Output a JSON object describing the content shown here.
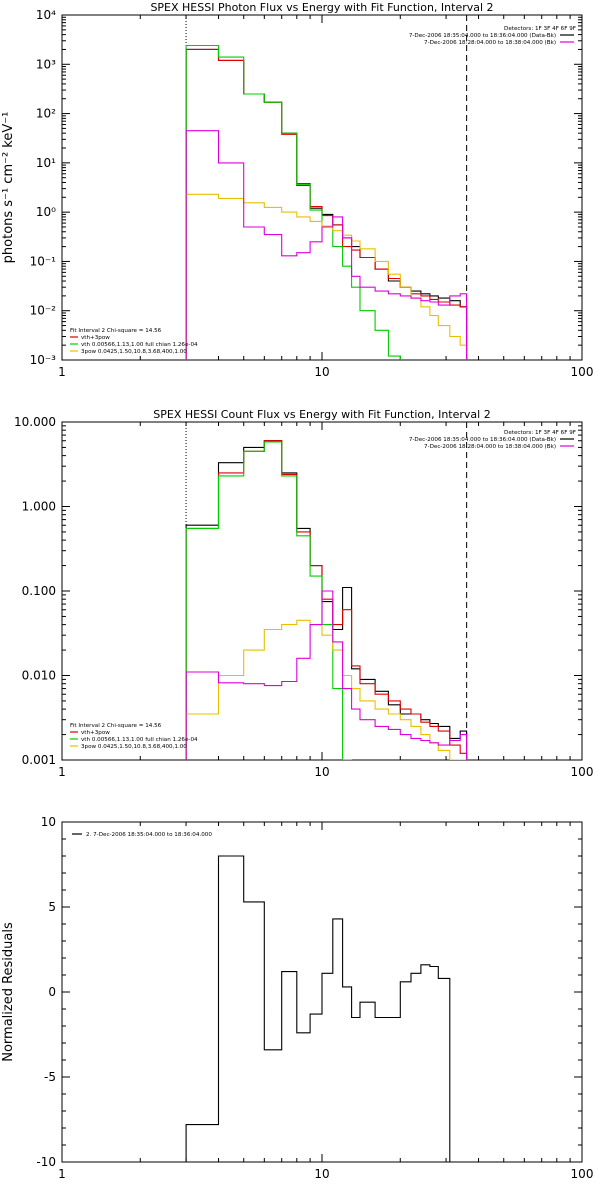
{
  "chart_data": [
    {
      "type": "line",
      "title": "SPEX HESSI Photon Flux vs Energy with Fit Function, Interval 2",
      "ylabel": "photons s⁻¹ cm⁻² keV⁻¹",
      "x_scale": "log",
      "y_scale": "log",
      "xlim": [
        1,
        100
      ],
      "ylim": [
        0.001,
        10000
      ],
      "x_ticks": [
        "1",
        "10",
        "100"
      ],
      "y_ticks": [
        "10⁻³",
        "10⁻²",
        "10⁻¹",
        "10⁰",
        "10¹",
        "10²",
        "10³",
        "10⁴"
      ],
      "legend_top": [
        "Detectors: 1F 3F 4F 6F 9F",
        "7-Dec-2006 18:35:04.000 to 18:36:04.000 (Data-Bk)",
        "7-Dec-2006 18:28:04.000 to 18:38:04.000 (Bk)"
      ],
      "legend_bottom": [
        "Fit Interval  2    Chi-square = 14.56",
        "vth+3pow",
        "vth 0.00566,1.13,1.00  full chian 1.26e-04",
        "3pow 0.0425,1.50,10.8,3.68,400,1.00"
      ],
      "vlines": [
        3,
        36
      ],
      "bin_edges": [
        3,
        4,
        5,
        6,
        7,
        8,
        9,
        10,
        11,
        12,
        13,
        14,
        16,
        18,
        20,
        22,
        24,
        26,
        28,
        31,
        34,
        36
      ],
      "series": [
        {
          "name": "7-Dec-2006 18:35:04.000 to 18:36:04.000 (Data-Bk)",
          "color": "#000000",
          "values": [
            2000,
            1200,
            250,
            170,
            40,
            3.5,
            1.2,
            0.9,
            0.55,
            0.3,
            0.2,
            0.12,
            0.07,
            0.04,
            0.03,
            0.025,
            0.022,
            0.02,
            0.018,
            0.016,
            0.012
          ]
        },
        {
          "name": "vth+3pow",
          "color": "#dd0000",
          "values": [
            2000,
            1200,
            250,
            170,
            38,
            3.8,
            1.3,
            0.85,
            0.55,
            0.2,
            0.17,
            0.12,
            0.07,
            0.045,
            0.03,
            0.022,
            0.02,
            0.017,
            0.015,
            0.013,
            0.012
          ]
        },
        {
          "name": "vth 0.00566,1.13,1.00  full chian 1.26e-04",
          "color": "#00cc00",
          "values": [
            2400,
            1400,
            250,
            170,
            40,
            3.6,
            1.1,
            0.5,
            0.2,
            0.08,
            0.03,
            0.01,
            0.004,
            0.0012
          ]
        },
        {
          "name": "3pow 0.0425,1.50,10.8,3.68,400,1.00",
          "color": "#e8c000",
          "values": [
            2.3,
            1.9,
            1.55,
            1.25,
            1.0,
            0.8,
            0.65,
            0.52,
            0.42,
            0.34,
            0.26,
            0.18,
            0.1,
            0.055,
            0.03,
            0.018,
            0.012,
            0.008,
            0.005,
            0.003,
            0.002
          ]
        },
        {
          "name": "7-Dec-2006 18:28:04.000 to 18:38:04.000 (Bk)",
          "color": "#dd00dd",
          "values": [
            45,
            10,
            0.5,
            0.35,
            0.13,
            0.15,
            0.25,
            0.5,
            0.8,
            0.3,
            0.05,
            0.03,
            0.025,
            0.022,
            0.02,
            0.018,
            0.016,
            0.015,
            0.013,
            0.02,
            0.022
          ]
        }
      ]
    },
    {
      "type": "line",
      "title": "SPEX HESSI Count Flux vs Energy with Fit Function, Interval 2",
      "ylabel": "",
      "x_scale": "log",
      "y_scale": "log",
      "xlim": [
        1,
        100
      ],
      "ylim": [
        0.001,
        10
      ],
      "x_ticks": [
        "1",
        "10",
        "100"
      ],
      "y_ticks": [
        "0.001",
        "0.010",
        "0.100",
        "1.000",
        "10.000"
      ],
      "legend_top": [
        "Detectors: 1F 3F 4F 6F 9F",
        "7-Dec-2006 18:35:04.000 to 18:36:04.000 (Data-Bk)",
        "7-Dec-2006 18:28:04.000 to 18:38:04.000 (Bk)"
      ],
      "legend_bottom": [
        "Fit Interval  2    Chi-square = 14.56",
        "vth+3pow",
        "vth 0.00566,1.13,1.00  full chian 1.26e-04",
        "3pow 0.0425,1.50,10.8,3.68,400,1.00"
      ],
      "vlines": [
        3,
        36
      ],
      "bin_edges": [
        3,
        4,
        5,
        6,
        7,
        8,
        9,
        10,
        11,
        12,
        13,
        14,
        16,
        18,
        20,
        22,
        24,
        26,
        28,
        31,
        34,
        36
      ],
      "series": [
        {
          "name": "7-Dec-2006 18:35:04.000 to 18:36:04.000 (Data-Bk)",
          "color": "#000000",
          "values": [
            0.6,
            3.3,
            5.0,
            6.0,
            2.5,
            0.55,
            0.2,
            0.075,
            0.035,
            0.11,
            0.012,
            0.009,
            0.0065,
            0.0045,
            0.0035,
            0.0035,
            0.003,
            0.0027,
            0.0025,
            0.0018,
            0.0022
          ]
        },
        {
          "name": "vth+3pow",
          "color": "#dd0000",
          "values": [
            0.55,
            2.5,
            4.5,
            6.0,
            2.4,
            0.5,
            0.2,
            0.08,
            0.04,
            0.06,
            0.013,
            0.008,
            0.006,
            0.005,
            0.004,
            0.0035,
            0.0028,
            0.0025,
            0.0022,
            0.0015,
            0.0012
          ]
        },
        {
          "name": "vth 0.00566,1.13,1.00  full chian 1.26e-04",
          "color": "#00cc00",
          "values": [
            0.55,
            2.3,
            4.5,
            5.8,
            2.3,
            0.45,
            0.15,
            0.04,
            0.007,
            0.001
          ]
        },
        {
          "name": "3pow 0.0425,1.50,10.8,3.68,400,1.00",
          "color": "#e8c000",
          "values": [
            0.0035,
            0.01,
            0.02,
            0.035,
            0.04,
            0.045,
            0.04,
            0.03,
            0.02,
            0.01,
            0.007,
            0.005,
            0.004,
            0.0035,
            0.003,
            0.0025,
            0.002,
            0.0016,
            0.0013,
            0.001,
            0.001
          ]
        },
        {
          "name": "7-Dec-2006 18:28:04.000 to 18:38:04.000 (Bk)",
          "color": "#dd00dd",
          "values": [
            0.011,
            0.0082,
            0.008,
            0.0076,
            0.0085,
            0.016,
            0.04,
            0.1,
            0.025,
            0.007,
            0.004,
            0.003,
            0.0025,
            0.0023,
            0.002,
            0.0018,
            0.0017,
            0.0016,
            0.0015,
            0.0017,
            0.002
          ]
        }
      ]
    },
    {
      "type": "line",
      "title": "",
      "ylabel": "Normalized Residuals",
      "x_scale": "log",
      "y_scale": "linear",
      "xlim": [
        1,
        100
      ],
      "ylim": [
        -10,
        10
      ],
      "x_ticks": [
        "1",
        "10",
        "100"
      ],
      "y_ticks": [
        "-10",
        "-5",
        "0",
        "5",
        "10"
      ],
      "legend_top": [
        "2.  7-Dec-2006 18:35:04.000 to 18:36:04.000"
      ],
      "bin_edges": [
        3,
        4,
        5,
        6,
        7,
        8,
        9,
        10,
        11,
        12,
        13,
        14,
        16,
        18,
        20,
        22,
        24,
        26,
        28,
        31,
        34,
        36
      ],
      "series": [
        {
          "name": "2.  7-Dec-2006 18:35:04.000 to 18:36:04.000",
          "color": "#000000",
          "values": [
            -7.8,
            8.0,
            5.3,
            -3.4,
            1.2,
            -2.4,
            -1.3,
            1.1,
            4.3,
            0.3,
            -1.5,
            -0.6,
            -1.5,
            -1.5,
            0.6,
            1.1,
            1.6,
            1.5,
            0.8,
            -10.0,
            -10.0
          ]
        }
      ]
    }
  ]
}
